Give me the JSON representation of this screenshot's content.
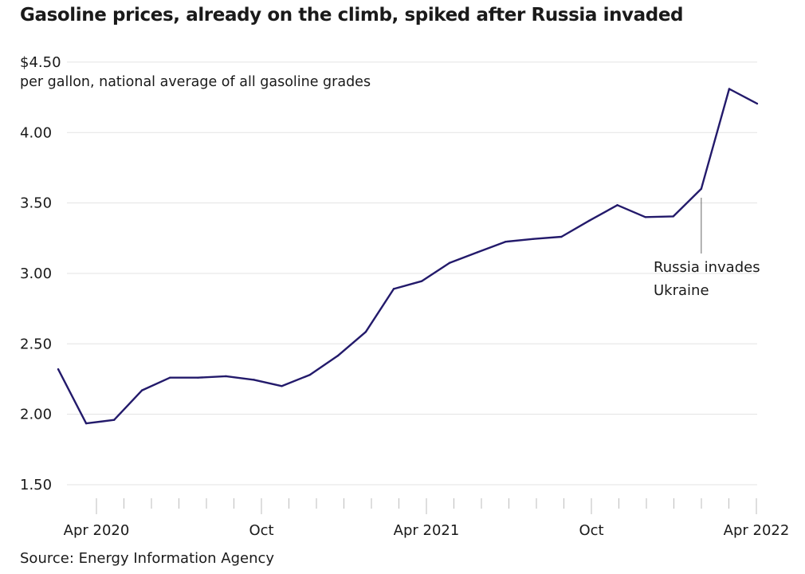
{
  "chart_data": {
    "type": "line",
    "title": "Gasoline prices, already on the climb, spiked after Russia invaded",
    "subtitle": "per gallon, national average of all gasoline grades",
    "source": "Source: Energy Information Agency",
    "xlabel": "",
    "ylabel": "",
    "ylim": [
      1.5,
      4.5
    ],
    "y_ticks": [
      {
        "value": 4.5,
        "label": "$4.50"
      },
      {
        "value": 4.0,
        "label": "4.00"
      },
      {
        "value": 3.5,
        "label": "3.50"
      },
      {
        "value": 3.0,
        "label": "3.00"
      },
      {
        "value": 2.5,
        "label": "2.50"
      },
      {
        "value": 2.0,
        "label": "2.00"
      },
      {
        "value": 1.5,
        "label": "1.50"
      }
    ],
    "x_range": [
      "2020-03",
      "2022-04"
    ],
    "x_tick_labels": [
      {
        "date": "2020-04",
        "label": "Apr 2020"
      },
      {
        "date": "2020-10",
        "label": "Oct"
      },
      {
        "date": "2021-04",
        "label": "Apr 2021"
      },
      {
        "date": "2021-10",
        "label": "Oct"
      },
      {
        "date": "2022-04",
        "label": "Apr 2022"
      }
    ],
    "grid": true,
    "line_color": "#231a6b",
    "series": [
      {
        "x": [
          "2020-03",
          "2020-04",
          "2020-05",
          "2020-06",
          "2020-07",
          "2020-08",
          "2020-09",
          "2020-10",
          "2020-11",
          "2020-12",
          "2021-01",
          "2021-02",
          "2021-03",
          "2021-04",
          "2021-05",
          "2021-06",
          "2021-07",
          "2021-08",
          "2021-09",
          "2021-10",
          "2021-11",
          "2021-12",
          "2022-01",
          "2022-02",
          "2022-03",
          "2022-04"
        ],
        "values": [
          2.32,
          1.935,
          1.96,
          2.17,
          2.26,
          2.26,
          2.27,
          2.245,
          2.2,
          2.28,
          2.415,
          2.585,
          2.89,
          2.945,
          3.075,
          3.15,
          3.225,
          3.245,
          3.26,
          3.375,
          3.485,
          3.4,
          3.405,
          3.6,
          4.31,
          4.205
        ]
      }
    ],
    "annotations": [
      {
        "date": "2022-02",
        "lines": [
          "Russia invades",
          "Ukraine"
        ]
      }
    ]
  }
}
